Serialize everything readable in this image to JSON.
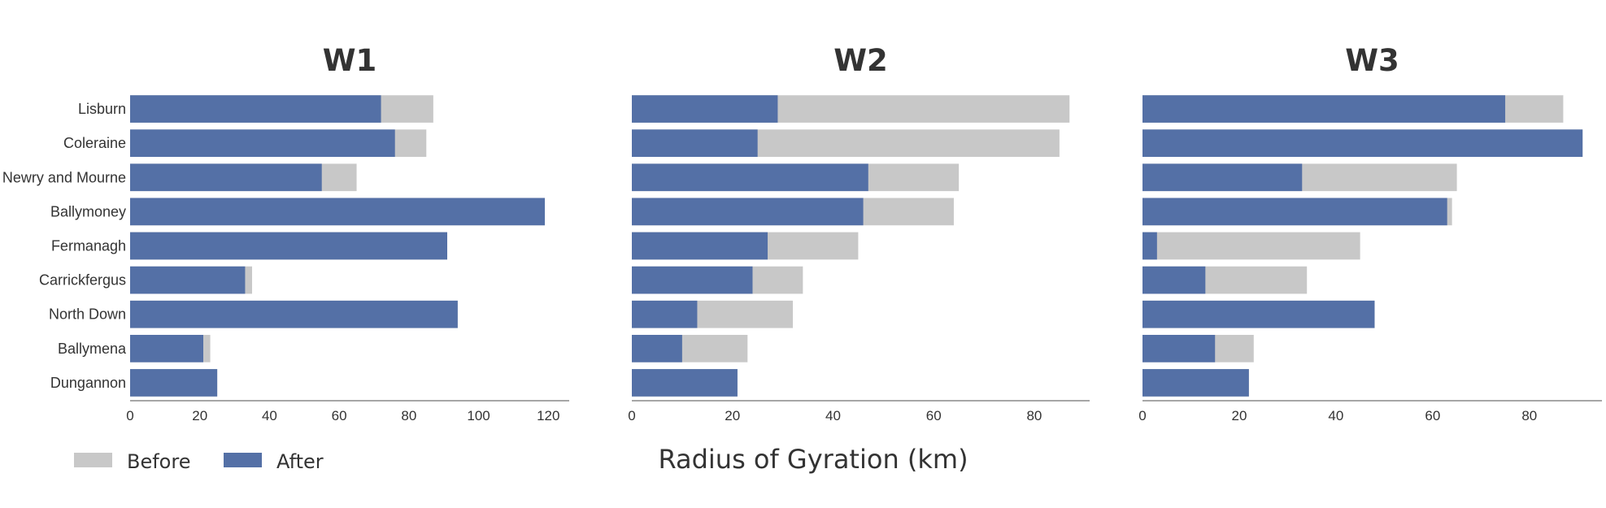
{
  "chart_data": {
    "type": "bar",
    "orientation": "horizontal",
    "stacking": "overlay",
    "categories": [
      "Lisburn",
      "Coleraine",
      "Newry and Mourne",
      "Ballymoney",
      "Fermanagh",
      "Carrickfergus",
      "North Down",
      "Ballymena",
      "Dungannon"
    ],
    "xlabel": "Radius of Gyration (km)",
    "legend": {
      "placement": "bottom-left",
      "entries": [
        {
          "name": "Before",
          "color": "#c8c8c8"
        },
        {
          "name": "After",
          "color": "#5470a6"
        }
      ]
    },
    "grid": false,
    "panels": [
      {
        "title": "W1",
        "xlim": [
          0,
          126
        ],
        "xticks": [
          0,
          20,
          40,
          60,
          80,
          100,
          120
        ],
        "series": [
          {
            "name": "Before",
            "values": [
              87,
              85,
              65,
              119,
              91,
              35,
              94,
              23,
              25
            ]
          },
          {
            "name": "After",
            "values": [
              72,
              76,
              55,
              119,
              91,
              33,
              94,
              21,
              25
            ]
          }
        ]
      },
      {
        "title": "W2",
        "xlim": [
          0,
          91
        ],
        "xticks": [
          0,
          20,
          40,
          60,
          80
        ],
        "series": [
          {
            "name": "Before",
            "values": [
              87,
              85,
              65,
              64,
              45,
              34,
              32,
              23,
              21
            ]
          },
          {
            "name": "After",
            "values": [
              29,
              25,
              47,
              46,
              27,
              24,
              13,
              10,
              21
            ]
          }
        ]
      },
      {
        "title": "W3",
        "xlim": [
          0,
          95
        ],
        "xticks": [
          0,
          20,
          40,
          60,
          80
        ],
        "series": [
          {
            "name": "Before",
            "values": [
              87,
              91,
              65,
              64,
              45,
              34,
              48,
              23,
              22
            ]
          },
          {
            "name": "After",
            "values": [
              75,
              91,
              33,
              63,
              3,
              13,
              48,
              15,
              22
            ]
          }
        ]
      }
    ]
  }
}
